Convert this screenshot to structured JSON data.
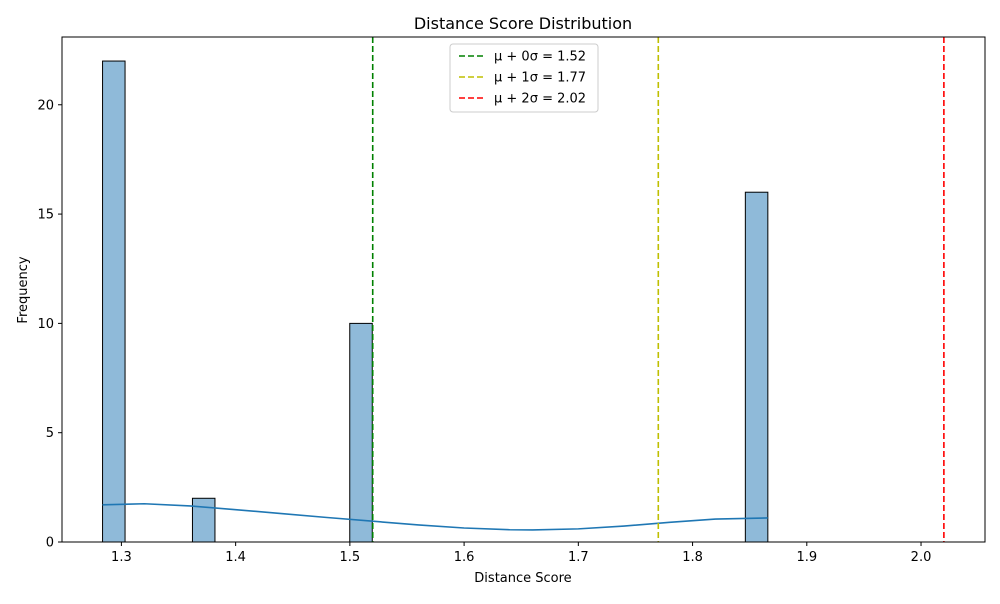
{
  "chart_data": {
    "type": "bar",
    "title": "Distance Score Distribution",
    "xlabel": "Distance Score",
    "ylabel": "Frequency",
    "xlim": [
      1.248,
      2.056
    ],
    "ylim": [
      0,
      23.1
    ],
    "xticks": [
      1.3,
      1.4,
      1.5,
      1.6,
      1.7,
      1.8,
      1.9,
      2.0
    ],
    "xtick_labels": [
      "1.3",
      "1.4",
      "1.5",
      "1.6",
      "1.7",
      "1.8",
      "1.9",
      "2.0"
    ],
    "yticks": [
      0,
      5,
      10,
      15,
      20
    ],
    "ytick_labels": [
      "0",
      "5",
      "10",
      "15",
      "20"
    ],
    "bars": [
      {
        "x0": 1.2835,
        "x1": 1.3032,
        "value": 22
      },
      {
        "x0": 1.3622,
        "x1": 1.3819,
        "value": 2
      },
      {
        "x0": 1.4999,
        "x1": 1.5196,
        "value": 10
      },
      {
        "x0": 1.8462,
        "x1": 1.8659,
        "value": 16
      }
    ],
    "bar_color": "#8fbad9",
    "bar_edge_color": "#000000",
    "kde": {
      "color": "#1f77b4",
      "x": [
        1.2835,
        1.32,
        1.36,
        1.4,
        1.44,
        1.48,
        1.52,
        1.56,
        1.6,
        1.64,
        1.66,
        1.7,
        1.74,
        1.78,
        1.82,
        1.8659
      ],
      "y": [
        1.7,
        1.75,
        1.65,
        1.48,
        1.3,
        1.12,
        0.95,
        0.78,
        0.64,
        0.56,
        0.55,
        0.6,
        0.73,
        0.9,
        1.05,
        1.1
      ]
    },
    "reference_lines": [
      {
        "x": 1.52,
        "color": "#008000",
        "label": "μ + 0σ = 1.52"
      },
      {
        "x": 1.77,
        "color": "#bfbf00",
        "label": "μ + 1σ = 1.77"
      },
      {
        "x": 2.02,
        "color": "#ff0000",
        "label": "μ + 2σ = 2.02"
      }
    ],
    "grid": false,
    "legend_position": "upper center"
  }
}
